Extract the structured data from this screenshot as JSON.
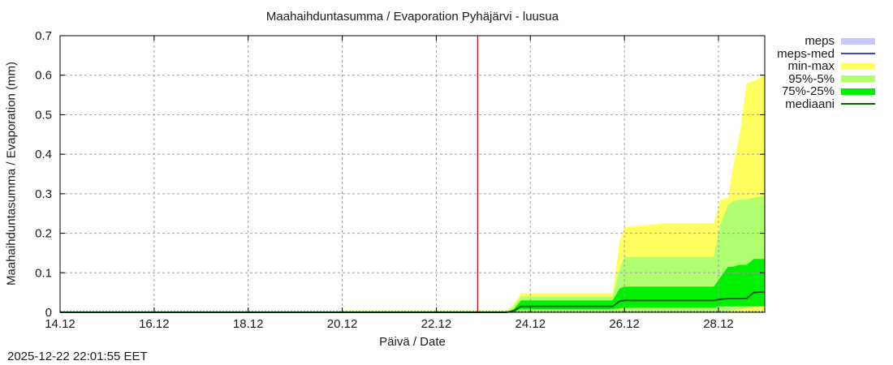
{
  "title": "Maahaihduntasumma / Evaporation   Pyhäjärvi - luusua",
  "timestamp": "2025-12-22 22:01:55 EET",
  "legend": [
    {
      "label": "meps",
      "kind": "band",
      "color": "#c8c8ff"
    },
    {
      "label": "meps-med",
      "kind": "line",
      "color": "#4040d0"
    },
    {
      "label": "min-max",
      "kind": "band",
      "color": "#ffff60"
    },
    {
      "label": "95%-5%",
      "kind": "band",
      "color": "#b0ff70"
    },
    {
      "label": "75%-25%",
      "kind": "band",
      "color": "#00f000"
    },
    {
      "label": "mediaani",
      "kind": "line",
      "color": "#006400"
    }
  ],
  "colors": {
    "forecast_line": "#d00000",
    "grid": "#a0a0a0",
    "axis": "#000000"
  },
  "chart_data": {
    "type": "area",
    "title": "Maahaihduntasumma / Evaporation   Pyhäjärvi - luusua",
    "xlabel": "Päivä / Date",
    "ylabel": "Maahaihduntasumma / Evaporation (mm)",
    "x_unit": "day of December 2025",
    "xlim": [
      14.0,
      29.5
    ],
    "ylim": [
      0,
      0.7
    ],
    "yticks": [
      0,
      0.1,
      0.2,
      0.3,
      0.4,
      0.5,
      0.6,
      0.7
    ],
    "ytick_labels": [
      "0",
      "0.1",
      "0.2",
      "0.3",
      "0.4",
      "0.5",
      "0.6",
      "0.7"
    ],
    "xticks": [
      14,
      16,
      18,
      20,
      22,
      24,
      26,
      28
    ],
    "xtick_labels": [
      "14.12",
      "16.12",
      "18.12",
      "20.12",
      "22.12",
      "24.12",
      "26.12",
      "28.12"
    ],
    "grid": true,
    "legend_position": "outside right top",
    "forecast_start_x": 22.88,
    "x": [
      14.0,
      20.0,
      20.02,
      23.5,
      23.65,
      23.8,
      25.75,
      25.9,
      26.0,
      26.8,
      27.9,
      28.05,
      28.2,
      28.3,
      28.45,
      28.6,
      28.75,
      29.0,
      29.5
    ],
    "series": [
      {
        "name": "min-max",
        "kind": "band",
        "lower": [
          0,
          0,
          0,
          0,
          0,
          0,
          0,
          0,
          0,
          0,
          0,
          0,
          0,
          0,
          0,
          0,
          0,
          0.005,
          0.005
        ],
        "upper": [
          0,
          0,
          0.005,
          0.005,
          0.02,
          0.048,
          0.048,
          0.18,
          0.215,
          0.225,
          0.225,
          0.285,
          0.29,
          0.36,
          0.45,
          0.58,
          0.585,
          0.6,
          0.6
        ]
      },
      {
        "name": "95%-5%",
        "kind": "band",
        "lower": [
          0,
          0,
          0,
          0,
          0,
          0,
          0,
          0,
          0,
          0,
          0,
          0,
          0.002,
          0.005,
          0.008,
          0.01,
          0.015,
          0.025,
          0.025
        ]
      },
      {
        "name": "95%-5%-upper",
        "kind": "band-upper",
        "upper": [
          0,
          0,
          0,
          0,
          0.015,
          0.04,
          0.04,
          0.11,
          0.14,
          0.14,
          0.14,
          0.225,
          0.27,
          0.28,
          0.285,
          0.285,
          0.29,
          0.295,
          0.295
        ]
      },
      {
        "name": "75%-25%",
        "kind": "band",
        "lower": [
          0,
          0,
          0,
          0,
          0,
          0.008,
          0.008,
          0.01,
          0.012,
          0.012,
          0.012,
          0.015,
          0.015,
          0.015,
          0.015,
          0.015,
          0.015,
          0.015,
          0.015
        ],
        "upper": [
          0,
          0,
          0,
          0,
          0.008,
          0.03,
          0.03,
          0.06,
          0.065,
          0.065,
          0.065,
          0.09,
          0.115,
          0.115,
          0.12,
          0.12,
          0.135,
          0.135,
          0.135
        ]
      },
      {
        "name": "mediaani",
        "kind": "line",
        "values": [
          0,
          0,
          0,
          0,
          0.004,
          0.015,
          0.015,
          0.028,
          0.03,
          0.03,
          0.03,
          0.033,
          0.035,
          0.035,
          0.035,
          0.035,
          0.05,
          0.052,
          0.052
        ]
      },
      {
        "name": "meps",
        "kind": "band",
        "values": []
      },
      {
        "name": "meps-med",
        "kind": "line",
        "values": []
      }
    ]
  }
}
